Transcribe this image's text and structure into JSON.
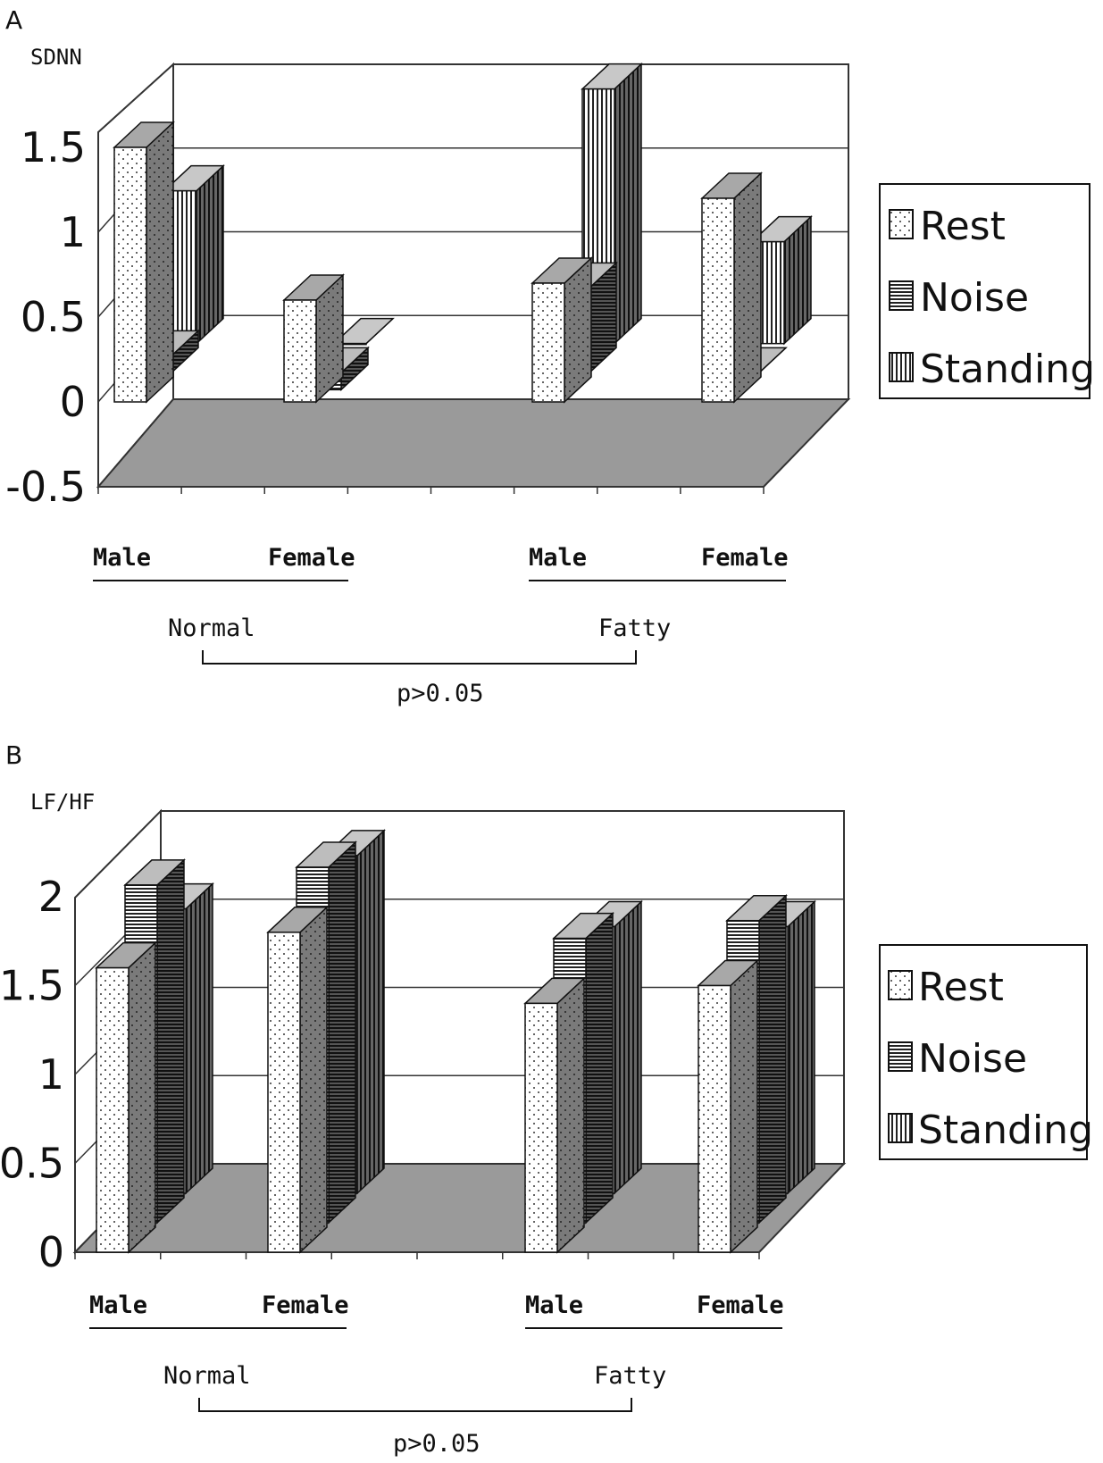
{
  "colors": {
    "floor": "#9a9a9a",
    "rest": "#ffffff",
    "noise": "#3a3a3a",
    "standing": "#ffffff",
    "side": "#7a7a7a",
    "top": "#a8a8a8",
    "stroke": "#111111"
  },
  "chart_data": [
    {
      "type": "bar",
      "panel": "A",
      "ylabel": "SDNN",
      "ylim": [
        -0.5,
        1.5
      ],
      "yticks": [
        "1.5",
        "1",
        "0.5",
        "0",
        "-0.5"
      ],
      "categories": [
        "Male",
        "Female",
        "Male",
        "Female"
      ],
      "groups": [
        "Normal",
        "Fatty"
      ],
      "comparison": "p>0.05",
      "legend": [
        "Rest",
        "Noise",
        "Standing"
      ],
      "series": [
        {
          "name": "Rest",
          "values": [
            1.5,
            0.6,
            0.7,
            1.2
          ]
        },
        {
          "name": "Noise",
          "values": [
            0.1,
            -0.1,
            0.5,
            0.0
          ]
        },
        {
          "name": "Standing",
          "values": [
            0.9,
            0.0,
            1.5,
            0.6
          ]
        }
      ]
    },
    {
      "type": "bar",
      "panel": "B",
      "ylabel": "LF/HF",
      "ylim": [
        0,
        2
      ],
      "yticks": [
        "2",
        "1.5",
        "1",
        "0.5",
        "0"
      ],
      "categories": [
        "Male",
        "Female",
        "Male",
        "Female"
      ],
      "groups": [
        "Normal",
        "Fatty"
      ],
      "comparison": "p>0.05",
      "legend": [
        "Rest",
        "Noise",
        "Standing"
      ],
      "series": [
        {
          "name": "Rest",
          "values": [
            1.6,
            1.8,
            1.4,
            1.5
          ]
        },
        {
          "name": "Noise",
          "values": [
            1.9,
            2.0,
            1.6,
            1.7
          ]
        },
        {
          "name": "Standing",
          "values": [
            1.6,
            1.9,
            1.5,
            1.5
          ]
        }
      ]
    }
  ]
}
